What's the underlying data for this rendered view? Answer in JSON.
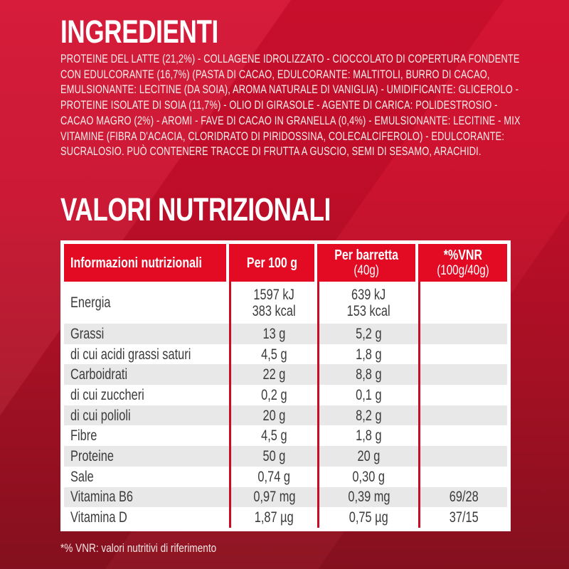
{
  "ingredients": {
    "title": "INGREDIENTI",
    "text": "PROTEINE DEL LATTE (21,2%) - COLLAGENE IDROLIZZATO - CIOCCOLATO DI COPERTURA FONDENTE CON EDULCORANTE (16,7%) (PASTA DI CACAO, EDULCORANTE: MALTITOLI, BURRO DI CACAO, EMULSIONANTE: LECITINE (DA SOIA), AROMA NATURALE DI VANIGLIA) - UMIDIFICANTE: GLICEROLO - PROTEINE ISOLATE DI SOIA (11,7%) - OLIO DI GIRASOLE - AGENTE DI CARICA: POLIDESTROSIO - CACAO MAGRO (2%) - AROMI - FAVE DI CACAO IN GRANELLA (0,4%) - EMULSIONANTE: LECITINE - MIX VITAMINE (FIBRA D'ACACIA, CLORIDRATO DI PIRIDOSSINA, COLECALCIFEROLO) - EDULCORANTE: SUCRALOSIO. PUÒ CONTENERE TRACCE DI FRUTTA A GUSCIO, SEMI DI SESAMO, ARACHIDI."
  },
  "nutrition": {
    "title": "VALORI NUTRIZIONALI",
    "footnote": "*% VNR: valori nutritivi di riferimento"
  },
  "table": {
    "columns": [
      {
        "line1": "Informazioni nutrizionali",
        "line2": ""
      },
      {
        "line1": "Per 100 g",
        "line2": ""
      },
      {
        "line1": "Per barretta",
        "line2": "(40g)"
      },
      {
        "line1": "*%VNR",
        "line2": "(100g/40g)"
      }
    ],
    "rows": [
      {
        "label": "Energia",
        "per_100g": "1597 kJ\n383 kcal",
        "per_barretta": "639 kJ\n153 kcal",
        "vnr": ""
      },
      {
        "label": "Grassi",
        "per_100g": "13 g",
        "per_barretta": "5,2 g",
        "vnr": ""
      },
      {
        "label": "di cui acidi grassi saturi",
        "per_100g": "4,5 g",
        "per_barretta": "1,8 g",
        "vnr": ""
      },
      {
        "label": "Carboidrati",
        "per_100g": "22 g",
        "per_barretta": "8,8 g",
        "vnr": ""
      },
      {
        "label": "di cui zuccheri",
        "per_100g": "0,2 g",
        "per_barretta": "0,1 g",
        "vnr": ""
      },
      {
        "label": "di cui polioli",
        "per_100g": "20 g",
        "per_barretta": "8,2 g",
        "vnr": ""
      },
      {
        "label": "Fibre",
        "per_100g": "4,5 g",
        "per_barretta": "1,8 g",
        "vnr": ""
      },
      {
        "label": "Proteine",
        "per_100g": "50 g",
        "per_barretta": "20 g",
        "vnr": ""
      },
      {
        "label": "Sale",
        "per_100g": "0,74 g",
        "per_barretta": "0,30 g",
        "vnr": ""
      },
      {
        "label": "Vitamina B6",
        "per_100g": "0,97 mg",
        "per_barretta": "0,39 mg",
        "vnr": "69/28"
      },
      {
        "label": "Vitamina D",
        "per_100g": "1,87 µg",
        "per_barretta": "0,75 µg",
        "vnr": "37/15"
      }
    ]
  },
  "colors": {
    "background_top": "#d41030",
    "background_bottom": "#8b1120",
    "header_cell_red": "#e20b23",
    "separator_red": "#cc0a23",
    "shaded_row": "#e8e8e8",
    "body_text": "#3b3b3b",
    "label_text": "#ffffff"
  }
}
